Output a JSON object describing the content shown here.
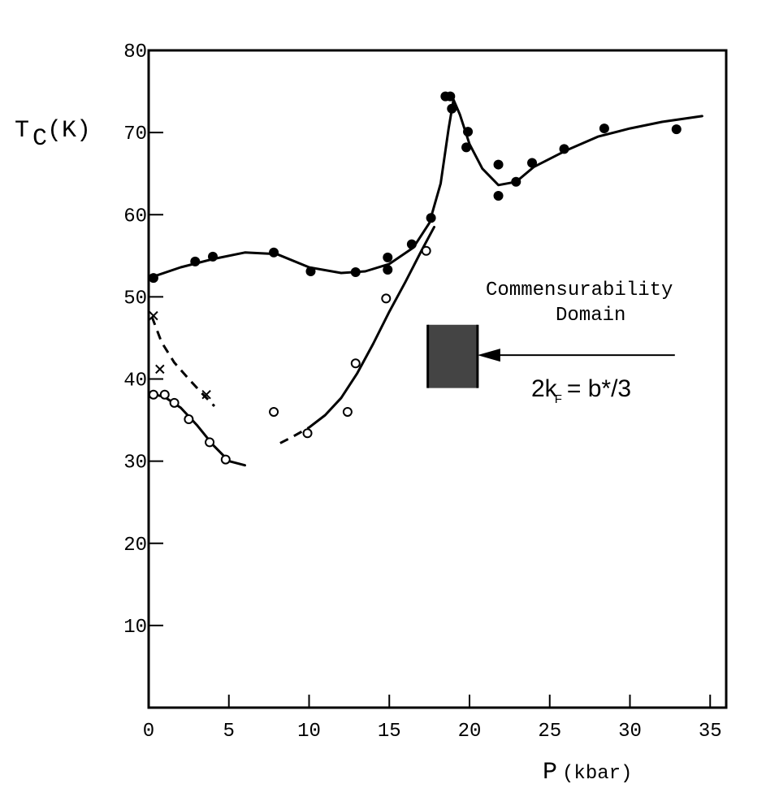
{
  "chart_data": {
    "type": "scatter",
    "xlabel": "P",
    "xlabel_unit": "(kbar)",
    "ylabel": "T",
    "ylabel_sub": "C",
    "ylabel_unit": "(K)",
    "xlim": [
      0,
      36
    ],
    "ylim": [
      0,
      80
    ],
    "x_ticks": [
      0,
      5,
      10,
      15,
      20,
      25,
      30,
      35
    ],
    "y_ticks": [
      10,
      20,
      30,
      40,
      50,
      60,
      70,
      80
    ],
    "grid": false,
    "series": [
      {
        "marker": "filled-circle",
        "points": [
          [
            0.3,
            52.3
          ],
          [
            2.9,
            54.3
          ],
          [
            4.0,
            54.9
          ],
          [
            7.8,
            55.4
          ],
          [
            10.1,
            53.1
          ],
          [
            12.9,
            53.0
          ],
          [
            14.9,
            54.8
          ],
          [
            14.9,
            53.3
          ],
          [
            16.4,
            56.4
          ],
          [
            17.6,
            59.6
          ],
          [
            18.5,
            74.4
          ],
          [
            18.8,
            74.4
          ],
          [
            18.9,
            72.9
          ],
          [
            19.8,
            68.2
          ],
          [
            19.9,
            70.1
          ],
          [
            21.8,
            66.1
          ],
          [
            21.8,
            62.3
          ],
          [
            22.9,
            64.0
          ],
          [
            23.9,
            66.3
          ],
          [
            25.9,
            68.0
          ],
          [
            28.4,
            70.5
          ],
          [
            32.9,
            70.4
          ]
        ]
      },
      {
        "marker": "open-circle",
        "points": [
          [
            0.3,
            38.1
          ],
          [
            1.0,
            38.1
          ],
          [
            1.6,
            37.1
          ],
          [
            2.5,
            35.1
          ],
          [
            3.8,
            32.3
          ],
          [
            4.8,
            30.2
          ],
          [
            7.8,
            36.0
          ],
          [
            9.9,
            33.4
          ],
          [
            12.4,
            36.0
          ],
          [
            12.9,
            41.9
          ],
          [
            14.8,
            49.8
          ],
          [
            17.3,
            55.6
          ]
        ]
      },
      {
        "marker": "cross",
        "points": [
          [
            0.3,
            47.7
          ],
          [
            0.7,
            41.2
          ],
          [
            3.6,
            38.1
          ]
        ]
      }
    ],
    "curves": [
      {
        "style": "solid",
        "points": [
          [
            0.2,
            52.4
          ],
          [
            2,
            53.6
          ],
          [
            4,
            54.6
          ],
          [
            6,
            55.4
          ],
          [
            8,
            55.2
          ],
          [
            10,
            53.6
          ],
          [
            12,
            52.9
          ],
          [
            13.5,
            53.1
          ],
          [
            15,
            54.0
          ],
          [
            16.5,
            56.0
          ],
          [
            17.5,
            59.0
          ],
          [
            18.2,
            63.8
          ],
          [
            18.7,
            70.5
          ],
          [
            19.0,
            74.0
          ],
          [
            19.4,
            72.2
          ],
          [
            20,
            68.6
          ],
          [
            20.8,
            65.6
          ],
          [
            21.8,
            63.6
          ],
          [
            22.9,
            64.0
          ],
          [
            24,
            65.8
          ],
          [
            26,
            67.8
          ],
          [
            28,
            69.5
          ],
          [
            30,
            70.5
          ],
          [
            32,
            71.3
          ],
          [
            34.5,
            72.0
          ]
        ]
      },
      {
        "style": "solid",
        "points": [
          [
            10,
            34.1
          ],
          [
            11,
            35.6
          ],
          [
            12,
            37.7
          ],
          [
            13,
            40.7
          ],
          [
            14,
            44.3
          ],
          [
            15,
            48.2
          ],
          [
            16,
            51.8
          ],
          [
            17,
            55.6
          ],
          [
            17.8,
            58.5
          ]
        ]
      },
      {
        "style": "dashed",
        "points": [
          [
            8.2,
            32.2
          ],
          [
            9.0,
            33.0
          ],
          [
            10,
            34.1
          ]
        ]
      },
      {
        "style": "solid",
        "points": [
          [
            0.2,
            38.2
          ],
          [
            1,
            37.8
          ],
          [
            2,
            36.5
          ],
          [
            3,
            34.4
          ],
          [
            4,
            32.0
          ],
          [
            5,
            30.0
          ],
          [
            6,
            29.5
          ]
        ]
      },
      {
        "style": "dashed",
        "points": [
          [
            0.2,
            47.6
          ],
          [
            0.8,
            44.5
          ],
          [
            1.6,
            42.0
          ],
          [
            2.5,
            40.0
          ],
          [
            3.3,
            38.3
          ],
          [
            4.1,
            36.7
          ]
        ]
      }
    ],
    "annotations": {
      "title_line1": "Commensurability",
      "title_line2": "Domain",
      "equation_pre": "2k",
      "equation_sub": "F",
      "equation_post": "= b*/3",
      "box": {
        "x_range": [
          17.4,
          20.5
        ],
        "y_range": [
          38.9,
          46.6
        ],
        "color": "#444444"
      },
      "arrow": {
        "from": [
          32.8,
          42.9
        ],
        "to": [
          20.5,
          42.9
        ]
      }
    }
  }
}
